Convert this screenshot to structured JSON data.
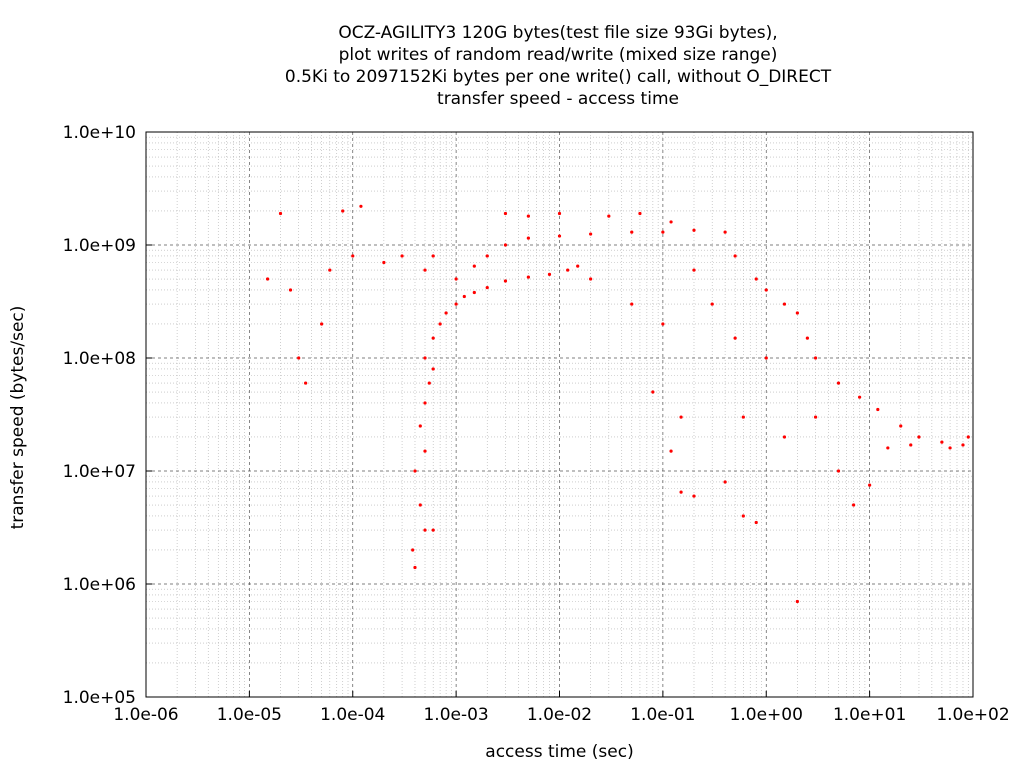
{
  "chart_data": {
    "type": "scatter",
    "title": [
      "OCZ-AGILITY3 120G bytes(test file size 93Gi bytes),",
      "plot writes of random read/write (mixed size range)",
      "0.5Ki to 2097152Ki bytes per one write() call, without O_DIRECT",
      "transfer speed - access time"
    ],
    "xlabel": "access time (sec)",
    "ylabel": "transfer speed (bytes/sec)",
    "x_scale": "log",
    "y_scale": "log",
    "xlim": [
      1e-06,
      100
    ],
    "ylim": [
      100000.0,
      10000000000.0
    ],
    "x_ticks": [
      {
        "value": 1e-06,
        "label": "1.0e-06"
      },
      {
        "value": 1e-05,
        "label": "1.0e-05"
      },
      {
        "value": 0.0001,
        "label": "1.0e-04"
      },
      {
        "value": 0.001,
        "label": "1.0e-03"
      },
      {
        "value": 0.01,
        "label": "1.0e-02"
      },
      {
        "value": 0.1,
        "label": "1.0e-01"
      },
      {
        "value": 1,
        "label": "1.0e+00"
      },
      {
        "value": 10,
        "label": "1.0e+01"
      },
      {
        "value": 100,
        "label": "1.0e+02"
      }
    ],
    "y_ticks": [
      {
        "value": 100000.0,
        "label": "1.0e+05"
      },
      {
        "value": 1000000.0,
        "label": "1.0e+06"
      },
      {
        "value": 10000000.0,
        "label": "1.0e+07"
      },
      {
        "value": 100000000.0,
        "label": "1.0e+08"
      },
      {
        "value": 1000000000.0,
        "label": "1.0e+09"
      },
      {
        "value": 10000000000.0,
        "label": "1.0e+10"
      }
    ],
    "grid": true,
    "point_color": "#ff0000",
    "series": [
      {
        "values": [
          [
            0.0004,
            1400000.0
          ],
          [
            0.00038,
            2000000.0
          ],
          [
            0.0005,
            3000000.0
          ],
          [
            0.00045,
            5000000.0
          ],
          [
            0.0006,
            3000000.0
          ],
          [
            0.0004,
            10000000.0
          ],
          [
            0.0005,
            15000000.0
          ],
          [
            0.00045,
            25000000.0
          ],
          [
            0.0005,
            40000000.0
          ],
          [
            0.00055,
            60000000.0
          ],
          [
            0.0006,
            80000000.0
          ],
          [
            0.0005,
            100000000.0
          ],
          [
            0.0006,
            150000000.0
          ],
          [
            0.0007,
            200000000.0
          ],
          [
            0.0008,
            250000000.0
          ],
          [
            0.001,
            300000000.0
          ],
          [
            0.0012,
            350000000.0
          ],
          [
            0.0015,
            380000000.0
          ],
          [
            0.002,
            420000000.0
          ],
          [
            0.003,
            480000000.0
          ],
          [
            0.005,
            520000000.0
          ],
          [
            0.008,
            550000000.0
          ],
          [
            0.012,
            600000000.0
          ],
          [
            0.015,
            650000000.0
          ],
          [
            0.02,
            500000000.0
          ],
          [
            0.001,
            500000000.0
          ],
          [
            0.0015,
            650000000.0
          ],
          [
            0.002,
            800000000.0
          ],
          [
            0.003,
            1000000000.0
          ],
          [
            0.005,
            1150000000.0
          ],
          [
            0.01,
            1200000000.0
          ],
          [
            0.02,
            1250000000.0
          ],
          [
            0.05,
            1300000000.0
          ],
          [
            0.1,
            1300000000.0
          ],
          [
            0.2,
            1350000000.0
          ],
          [
            0.4,
            1300000000.0
          ],
          [
            0.003,
            1900000000.0
          ],
          [
            0.005,
            1800000000.0
          ],
          [
            0.01,
            1900000000.0
          ],
          [
            0.03,
            1800000000.0
          ],
          [
            0.06,
            1900000000.0
          ],
          [
            0.12,
            1600000000.0
          ],
          [
            2e-05,
            1900000000.0
          ],
          [
            8e-05,
            2000000000.0
          ],
          [
            0.00012,
            2200000000.0
          ],
          [
            1.5e-05,
            500000000.0
          ],
          [
            2.5e-05,
            400000000.0
          ],
          [
            3e-05,
            100000000.0
          ],
          [
            3.5e-05,
            60000000.0
          ],
          [
            5e-05,
            200000000.0
          ],
          [
            6e-05,
            600000000.0
          ],
          [
            0.0001,
            800000000.0
          ],
          [
            0.0002,
            700000000.0
          ],
          [
            0.0003,
            800000000.0
          ],
          [
            0.0005,
            600000000.0
          ],
          [
            0.0006,
            800000000.0
          ],
          [
            0.5,
            800000000.0
          ],
          [
            0.8,
            500000000.0
          ],
          [
            1.0,
            400000000.0
          ],
          [
            1.5,
            300000000.0
          ],
          [
            2.0,
            250000000.0
          ],
          [
            2.5,
            150000000.0
          ],
          [
            3.0,
            100000000.0
          ],
          [
            5.0,
            60000000.0
          ],
          [
            8.0,
            45000000.0
          ],
          [
            12,
            35000000.0
          ],
          [
            20,
            25000000.0
          ],
          [
            30,
            20000000.0
          ],
          [
            50,
            18000000.0
          ],
          [
            80,
            17000000.0
          ],
          [
            90,
            20000000.0
          ],
          [
            60,
            16000000.0
          ],
          [
            25,
            17000000.0
          ],
          [
            15,
            16000000.0
          ],
          [
            1.0,
            100000000.0
          ],
          [
            0.5,
            150000000.0
          ],
          [
            0.3,
            300000000.0
          ],
          [
            0.2,
            600000000.0
          ],
          [
            0.1,
            200000000.0
          ],
          [
            0.05,
            300000000.0
          ],
          [
            0.08,
            50000000.0
          ],
          [
            0.15,
            30000000.0
          ],
          [
            0.12,
            15000000.0
          ],
          [
            0.2,
            6000000.0
          ],
          [
            0.4,
            8000000.0
          ],
          [
            0.6,
            4000000.0
          ],
          [
            0.8,
            3500000.0
          ],
          [
            1.5,
            20000000.0
          ],
          [
            2.0,
            700000.0
          ],
          [
            5.0,
            10000000.0
          ],
          [
            7.0,
            5000000.0
          ],
          [
            10,
            7500000.0
          ],
          [
            3.0,
            30000000.0
          ],
          [
            0.15,
            6500000.0
          ],
          [
            0.6,
            30000000.0
          ]
        ]
      }
    ]
  }
}
